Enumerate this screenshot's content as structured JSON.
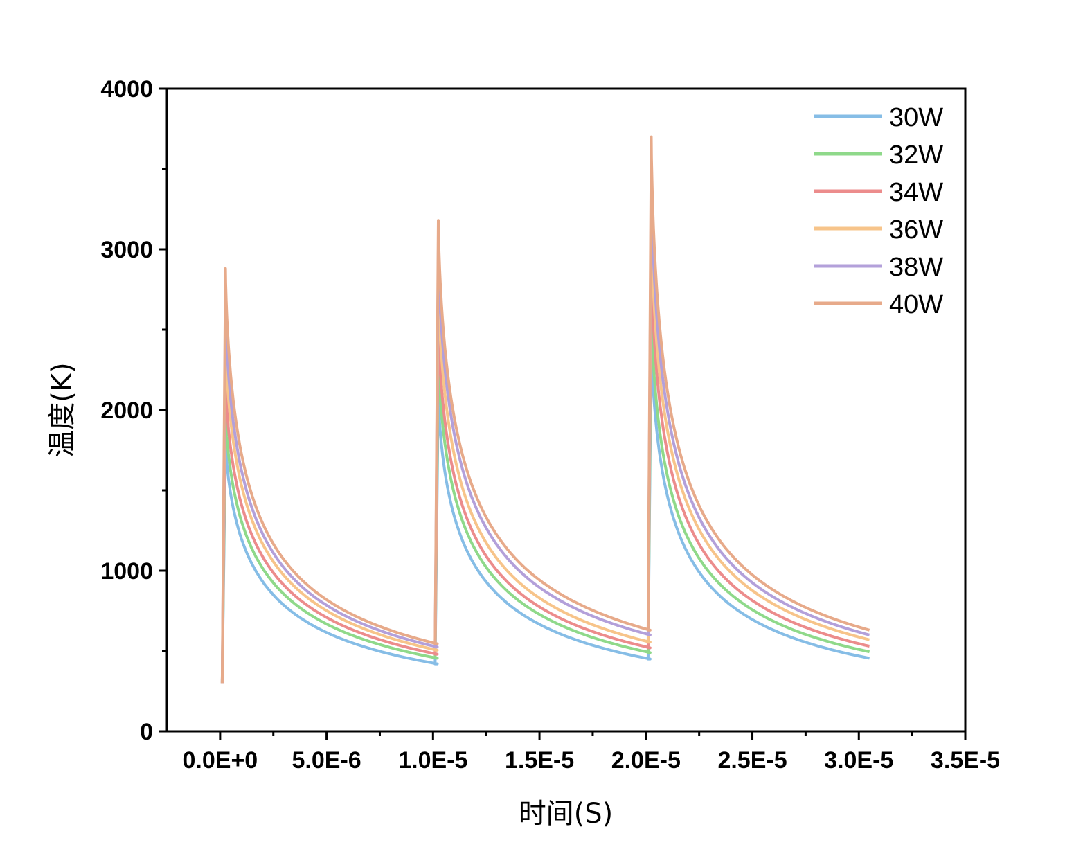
{
  "chart_data": {
    "type": "line",
    "title": "",
    "xlabel": "时间(S)",
    "ylabel": "温度(K)",
    "xlim": [
      -2.5e-06,
      3.5e-05
    ],
    "ylim": [
      0,
      4000
    ],
    "xticks": [
      0,
      5e-06,
      1e-05,
      1.5e-05,
      2e-05,
      2.5e-05,
      3e-05,
      3.5e-05
    ],
    "xtick_labels": [
      "0.0E+0",
      "5.0E-6",
      "1.0E-5",
      "1.5E-5",
      "2.0E-5",
      "2.5E-5",
      "3.0E-5",
      "3.5E-5"
    ],
    "yticks": [
      0,
      1000,
      2000,
      3000,
      4000
    ],
    "ytick_labels": [
      "0",
      "1000",
      "2000",
      "3000",
      "4000"
    ],
    "legend_position": "top-right",
    "grid": false,
    "pulse_starts": [
      0,
      1e-05,
      2e-05
    ],
    "pulse_end": 3.05e-05,
    "series": [
      {
        "name": "30W",
        "color": "#86bde6",
        "peaks": [
          1820,
          2100,
          2450
        ],
        "ends": [
          420,
          450,
          455
        ],
        "start": 300
      },
      {
        "name": "32W",
        "color": "#8fd98a",
        "peaks": [
          2000,
          2350,
          2650
        ],
        "ends": [
          455,
          490,
          495
        ],
        "start": 300
      },
      {
        "name": "34W",
        "color": "#ec8c8c",
        "peaks": [
          2200,
          2550,
          2950
        ],
        "ends": [
          480,
          520,
          530
        ],
        "start": 300
      },
      {
        "name": "36W",
        "color": "#f7c48a",
        "peaks": [
          2450,
          2800,
          3200
        ],
        "ends": [
          505,
          555,
          570
        ],
        "start": 300
      },
      {
        "name": "38W",
        "color": "#b3a0da",
        "peaks": [
          2650,
          3000,
          3450
        ],
        "ends": [
          525,
          600,
          600
        ],
        "start": 300
      },
      {
        "name": "40W",
        "color": "#e7aa8a",
        "peaks": [
          2880,
          3180,
          3700
        ],
        "ends": [
          545,
          630,
          630
        ],
        "start": 300
      }
    ]
  }
}
